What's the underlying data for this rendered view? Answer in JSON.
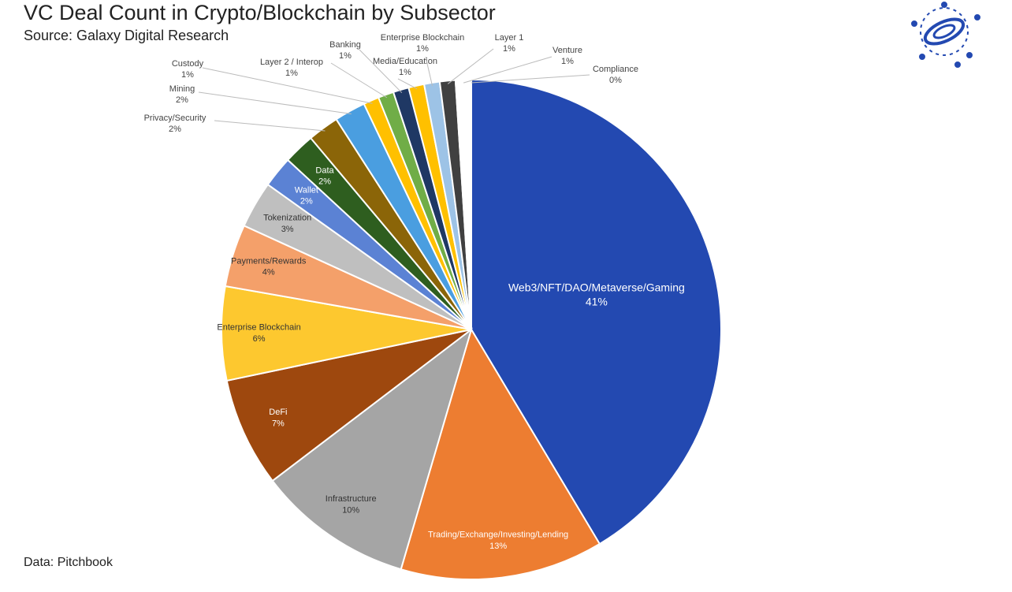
{
  "chart_data": {
    "type": "pie",
    "title": "VC Deal Count in Crypto/Blockchain by Subsector",
    "subtitle": "Source: Galaxy Digital Research",
    "footnote": "Data: Pitchbook",
    "categories": [
      "Web3/NFT/DAO/Metaverse/Gaming",
      "Trading/Exchange/Investing/Lending",
      "Infrastructure",
      "DeFi",
      "Enterprise Blockchain",
      "Payments/Rewards",
      "Tokenization",
      "Wallet",
      "Data",
      "Privacy/Security",
      "Mining",
      "Custody",
      "Layer 2 / Interop",
      "Banking",
      "Media/Education",
      "Enterprise Blockchain",
      "Layer 1",
      "Venture",
      "Compliance"
    ],
    "values": [
      41,
      13,
      10,
      7,
      6,
      4,
      3,
      2,
      2,
      2,
      2,
      1,
      1,
      1,
      1,
      1,
      1,
      1,
      0
    ],
    "value_labels": [
      "41%",
      "13%",
      "10%",
      "7%",
      "6%",
      "4%",
      "3%",
      "2%",
      "2%",
      "2%",
      "2%",
      "1%",
      "1%",
      "1%",
      "1%",
      "1%",
      "1%",
      "1%",
      "0%"
    ],
    "colors": [
      "#2349b1",
      "#ed7d31",
      "#a5a5a5",
      "#9e480e",
      "#fdc82f",
      "#f4a06a",
      "#bfbfbf",
      "#5b82d4",
      "#2e5e1f",
      "#8b6508",
      "#4a9ee0",
      "#ffc000",
      "#70ad47",
      "#1f3864",
      "#ffc000",
      "#9dc3e6",
      "#404040",
      "#ffffff",
      "#ffffff"
    ]
  }
}
